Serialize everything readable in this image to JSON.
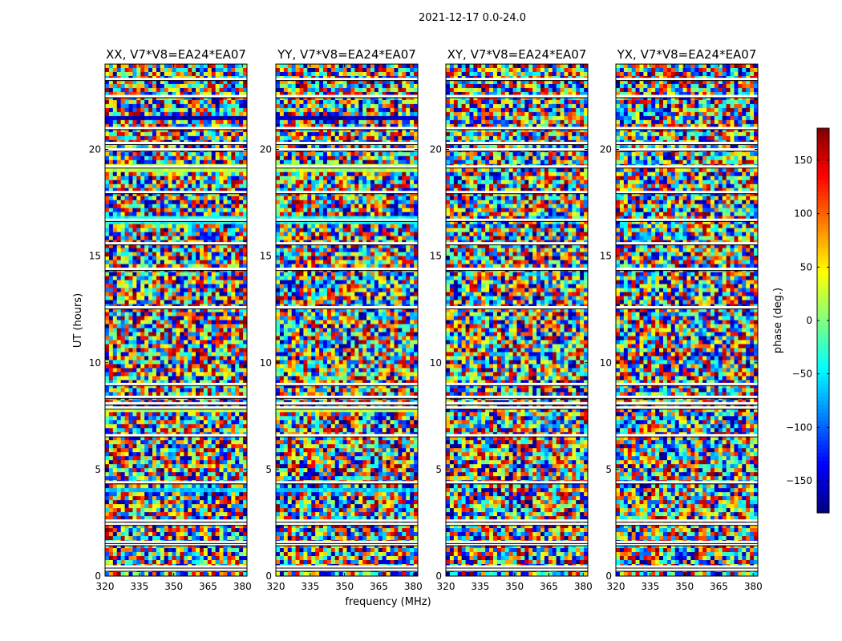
{
  "chart_data": {
    "type": "heatmap",
    "title": "2021-12-17 0.0-24.0",
    "xlabel": "frequency (MHz)",
    "ylabel": "UT (hours)",
    "colorbar_label": "phase (deg.)",
    "colorbar_range": [
      -180,
      180
    ],
    "colorbar_ticks": [
      150,
      100,
      50,
      0,
      -50,
      -100,
      -150
    ],
    "colorbar_tick_labels": [
      "150",
      "100",
      "50",
      "0",
      "−50",
      "−100",
      "−150"
    ],
    "colormap": "jet",
    "xlim": [
      320,
      382
    ],
    "ylim": [
      0,
      24
    ],
    "x_ticks": [
      320,
      335,
      350,
      365,
      380
    ],
    "y_ticks": [
      0,
      5,
      10,
      15,
      20
    ],
    "panels": [
      {
        "name": "XX, V7*V8=EA24*EA07"
      },
      {
        "name": "YY, V7*V8=EA24*EA07"
      },
      {
        "name": "XY, V7*V8=EA24*EA07"
      },
      {
        "name": "YX, V7*V8=EA24*EA07"
      }
    ],
    "flagged_ut_hours": [
      0.3,
      0.45,
      1.5,
      1.6,
      2.45,
      2.6,
      4.4,
      6.6,
      7.9,
      8.1,
      8.4,
      9.0,
      12.6,
      14.4,
      15.6,
      16.7,
      18.0,
      19.2,
      20.0,
      20.3,
      21.0,
      22.5,
      23.3
    ],
    "coherent_bands": [
      {
        "panels": [
          0,
          1
        ],
        "y_start": 21.4,
        "y_end": 21.6,
        "phase": -160
      },
      {
        "panels": [
          0,
          1
        ],
        "y_start": 18.9,
        "y_end": 19.3,
        "phase": 20
      },
      {
        "panels": [
          0,
          1
        ],
        "y_start": 16.5,
        "y_end": 16.8,
        "phase": -40
      },
      {
        "panels": [
          0,
          1
        ],
        "y_start": 3.9,
        "y_end": 4.2,
        "phase": -60
      },
      {
        "panels": [
          0,
          1
        ],
        "y_start": 7.6,
        "y_end": 7.8,
        "phase": 20
      }
    ]
  }
}
